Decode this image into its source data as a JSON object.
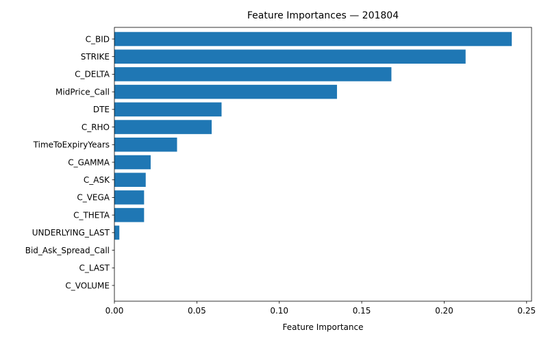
{
  "chart_data": {
    "type": "bar",
    "orientation": "horizontal",
    "title": "Feature Importances — 201804",
    "xlabel": "Feature Importance",
    "ylabel": "",
    "xlim": [
      0,
      0.253
    ],
    "xticks": [
      0.0,
      0.05,
      0.1,
      0.15,
      0.2,
      0.25
    ],
    "xtick_labels": [
      "0.00",
      "0.05",
      "0.10",
      "0.15",
      "0.20",
      "0.25"
    ],
    "grid": false,
    "bar_color": "#1f77b4",
    "categories": [
      "C_BID",
      "STRIKE",
      "C_DELTA",
      "MidPrice_Call",
      "DTE",
      "C_RHO",
      "TimeToExpiryYears",
      "C_GAMMA",
      "C_ASK",
      "C_VEGA",
      "C_THETA",
      "UNDERLYING_LAST",
      "Bid_Ask_Spread_Call",
      "C_LAST",
      "C_VOLUME"
    ],
    "values": [
      0.241,
      0.213,
      0.168,
      0.135,
      0.065,
      0.059,
      0.038,
      0.022,
      0.019,
      0.018,
      0.018,
      0.003,
      0.0,
      0.0,
      0.0
    ]
  }
}
